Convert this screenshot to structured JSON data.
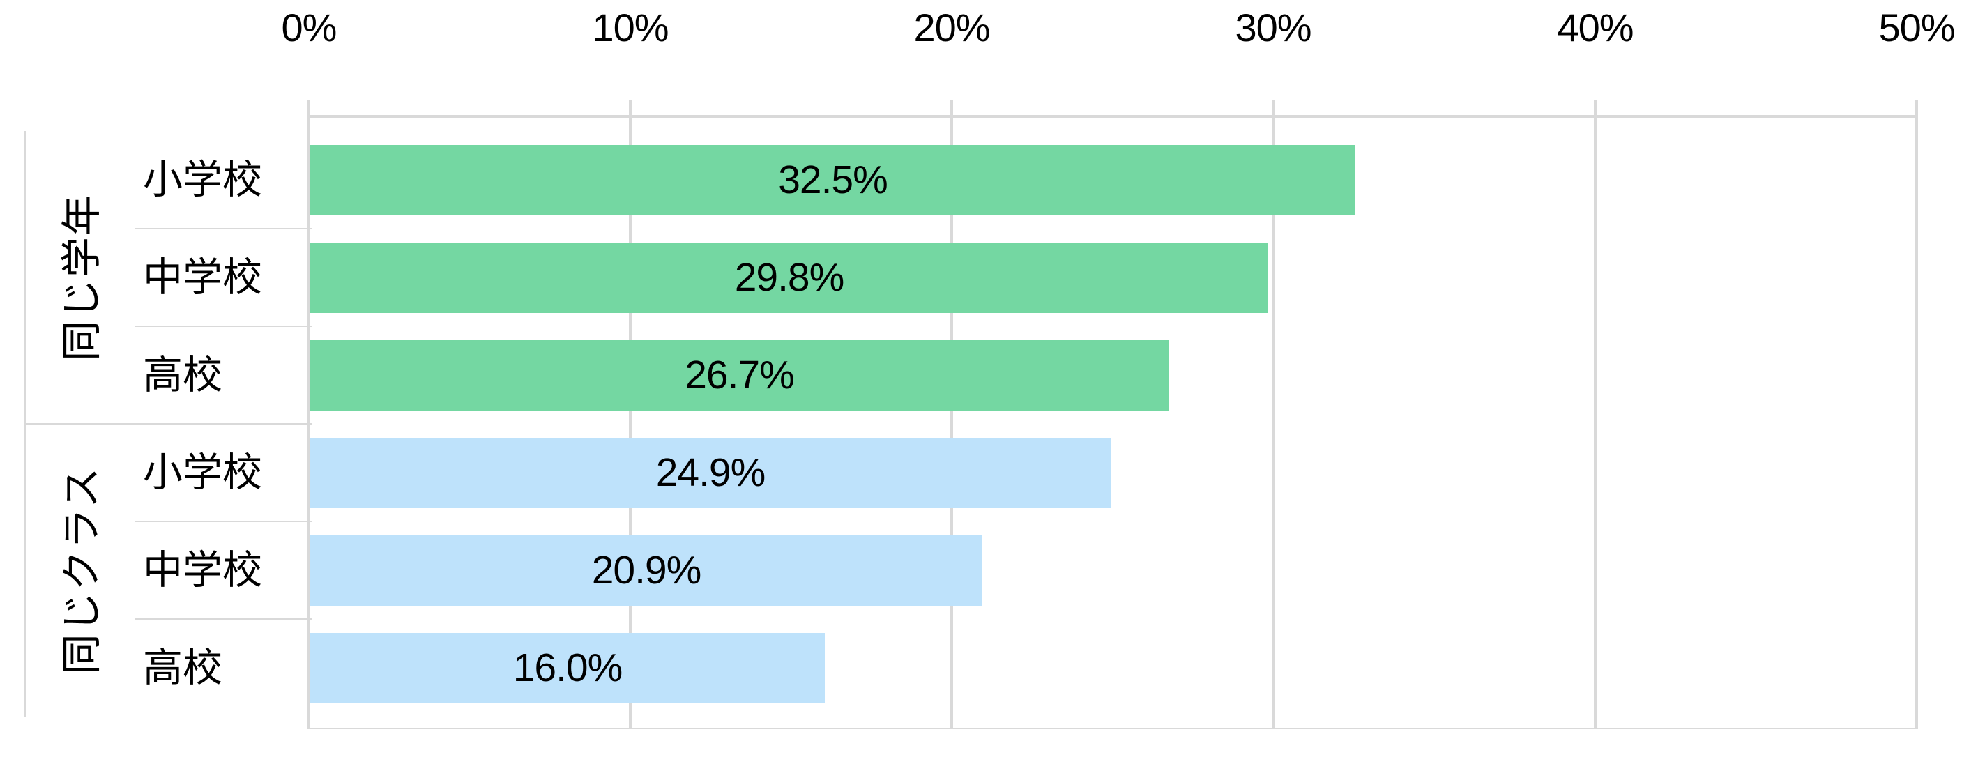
{
  "chart_data": {
    "type": "bar",
    "orientation": "horizontal",
    "title": "",
    "x_axis": {
      "position": "top",
      "min": 0,
      "max": 50,
      "ticks": [
        "0%",
        "10%",
        "20%",
        "30%",
        "40%",
        "50%"
      ],
      "gridlines": true,
      "gridline_color": "#d9d9d9"
    },
    "groups": [
      {
        "label": "同じ学年",
        "color": "#74d7a2",
        "items": [
          {
            "category": "小学校",
            "value": 32.5,
            "label": "32.5%"
          },
          {
            "category": "中学校",
            "value": 29.8,
            "label": "29.8%"
          },
          {
            "category": "高校",
            "value": 26.7,
            "label": "26.7%"
          }
        ]
      },
      {
        "label": "同じクラス",
        "color": "#bee2fb",
        "items": [
          {
            "category": "小学校",
            "value": 24.9,
            "label": "24.9%"
          },
          {
            "category": "中学校",
            "value": 20.9,
            "label": "20.9%"
          },
          {
            "category": "高校",
            "value": 16.0,
            "label": "16.0%"
          }
        ]
      }
    ],
    "legend": false,
    "text_color": "#000000",
    "background_color": "#ffffff"
  }
}
